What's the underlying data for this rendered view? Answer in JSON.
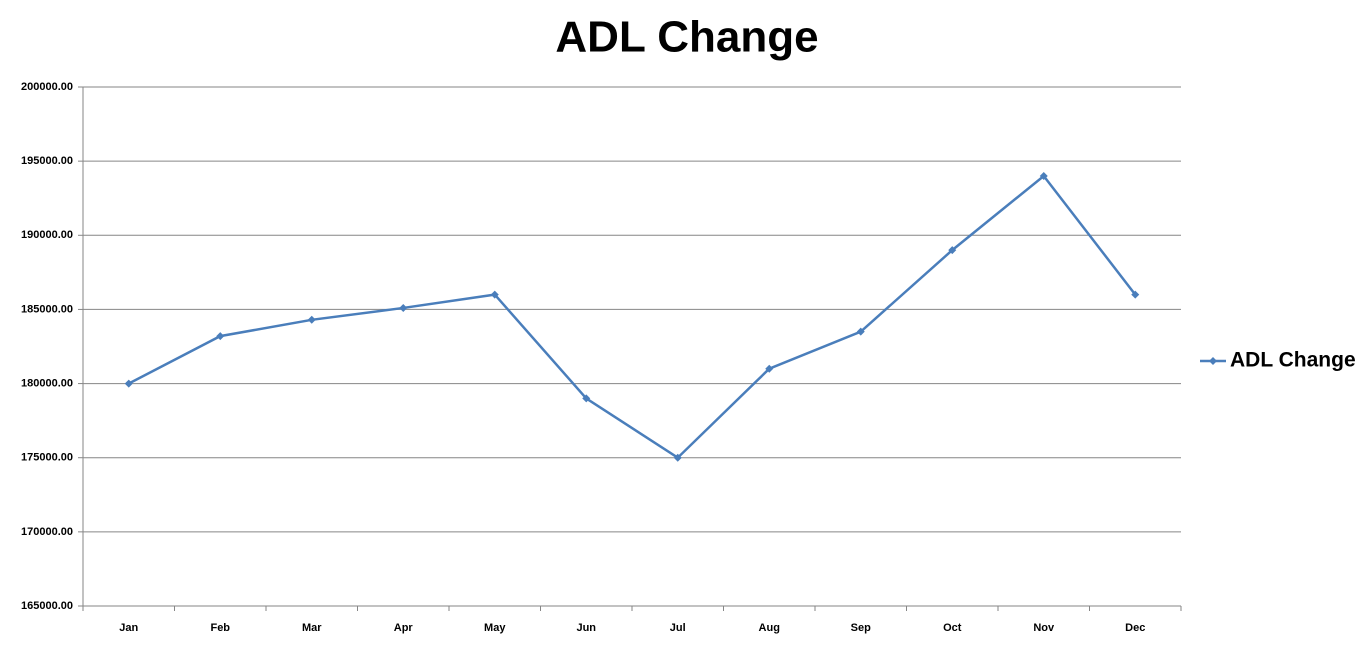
{
  "chart_data": {
    "type": "line",
    "title": "ADL Change",
    "categories": [
      "Jan",
      "Feb",
      "Mar",
      "Apr",
      "May",
      "Jun",
      "Jul",
      "Aug",
      "Sep",
      "Oct",
      "Nov",
      "Dec"
    ],
    "series": [
      {
        "name": "ADL Change",
        "color": "#4a7ebb",
        "values": [
          180000,
          183200,
          184300,
          185100,
          186000,
          179000,
          175000,
          181000,
          183500,
          189000,
          194000,
          186000
        ]
      }
    ],
    "ylim": [
      165000,
      200000
    ],
    "yticks": [
      {
        "value": 165000,
        "label": "165000.00"
      },
      {
        "value": 170000,
        "label": "170000.00"
      },
      {
        "value": 175000,
        "label": "175000.00"
      },
      {
        "value": 180000,
        "label": "180000.00"
      },
      {
        "value": 185000,
        "label": "185000.00"
      },
      {
        "value": 190000,
        "label": "190000.00"
      },
      {
        "value": 195000,
        "label": "195000.00"
      },
      {
        "value": 200000,
        "label": "200000.00"
      }
    ],
    "grid": true,
    "legend": "right"
  }
}
